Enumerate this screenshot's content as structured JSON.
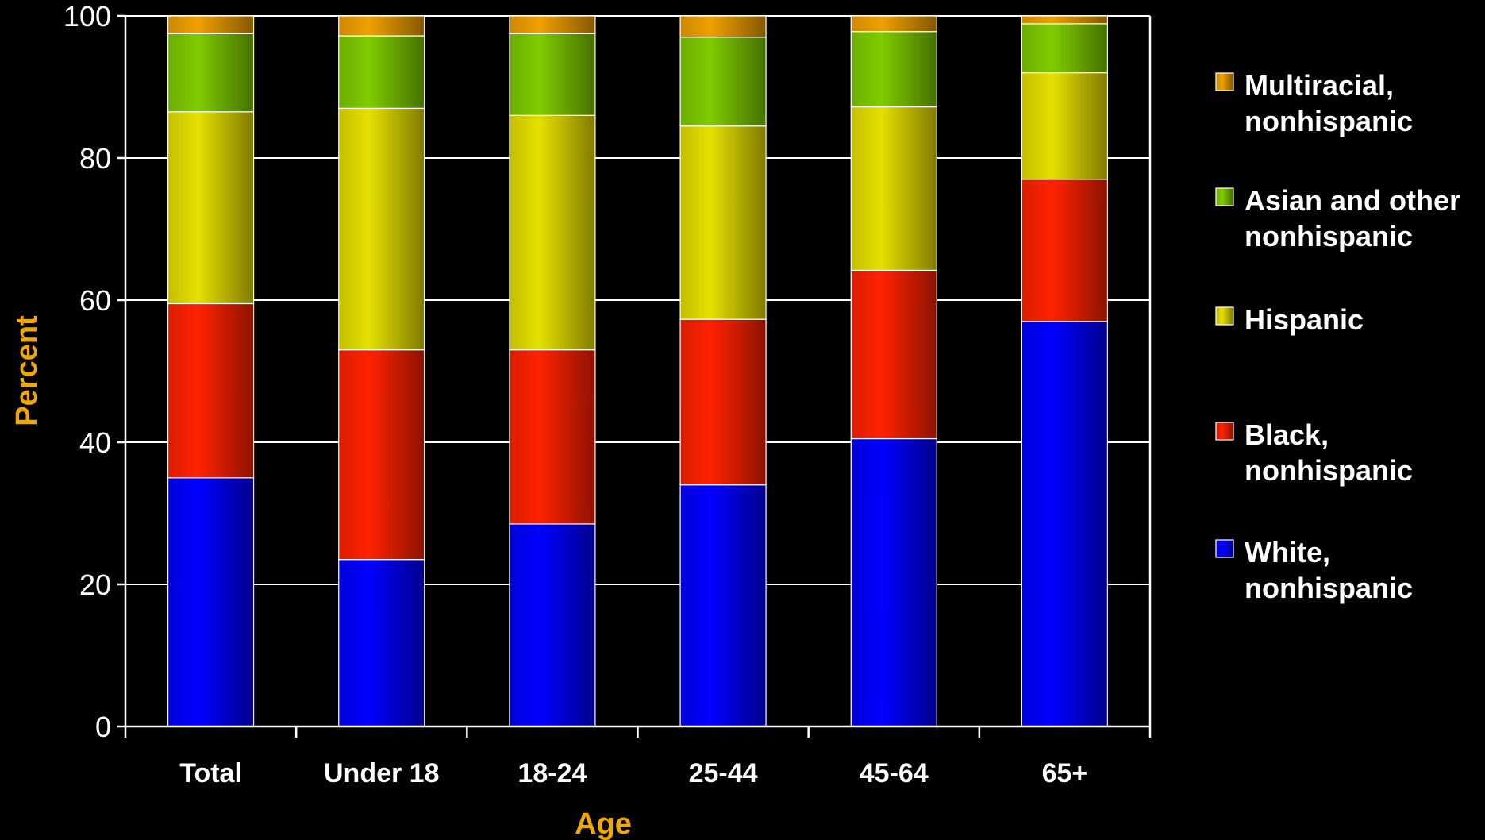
{
  "chart_data": {
    "type": "bar",
    "stacked": true,
    "categories": [
      "Total",
      "Under 18",
      "18-24",
      "25-44",
      "45-64",
      "65+"
    ],
    "series": [
      {
        "name": "White, nonhispanic",
        "name_lines": [
          "White,",
          "nonhispanic"
        ],
        "color": "#0000ff",
        "values": [
          35,
          23.5,
          28.5,
          34,
          40.5,
          57
        ]
      },
      {
        "name": "Black, nonhispanic",
        "name_lines": [
          "Black,",
          "nonhispanic"
        ],
        "color": "#ff2200",
        "values": [
          24.5,
          29.5,
          24.5,
          23.3,
          23.7,
          20
        ]
      },
      {
        "name": "Hispanic",
        "name_lines": [
          "Hispanic"
        ],
        "color": "#e6e000",
        "values": [
          27,
          34,
          33,
          27.2,
          23,
          15
        ]
      },
      {
        "name": "Asian and other nonhispanic",
        "name_lines": [
          "Asian and other",
          "nonhispanic"
        ],
        "color": "#7fcc00",
        "values": [
          11,
          10.2,
          11.5,
          12.5,
          10.6,
          6.9
        ]
      },
      {
        "name": "Multiracial, nonhispanic",
        "name_lines": [
          "Multiracial,",
          "nonhispanic"
        ],
        "color": "#f0a000",
        "values": [
          2.5,
          2.8,
          2.5,
          3,
          2.2,
          1.1
        ]
      }
    ],
    "xlabel": "Age",
    "ylabel": "Percent",
    "ylim": [
      0,
      100
    ],
    "yticks": [
      0,
      20,
      40,
      60,
      80,
      100
    ],
    "grid": true,
    "legend_position": "right",
    "colors": {
      "background": "#000000",
      "axis": "#ffffff",
      "gridline": "#ffffff",
      "axis_title": "#f0a800",
      "text": "#ffffff"
    }
  }
}
